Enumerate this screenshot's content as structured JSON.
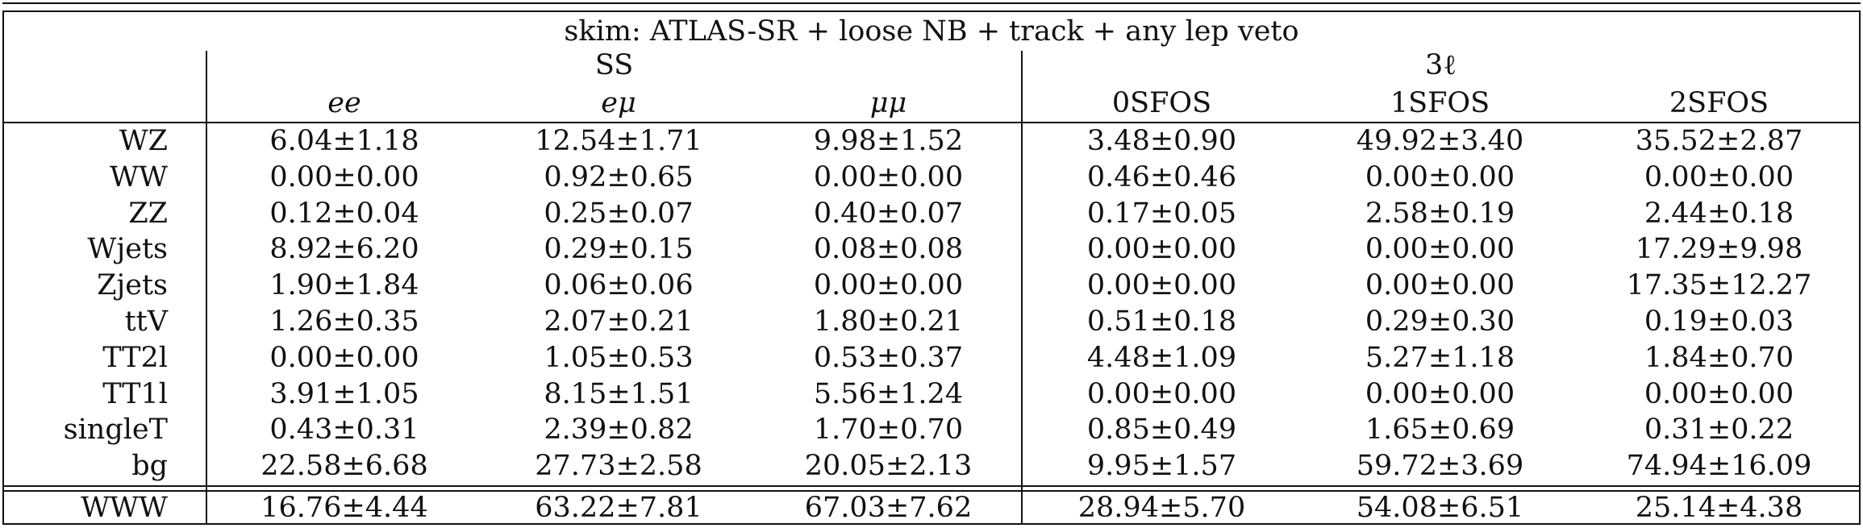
{
  "table": {
    "skim_label": "skim: ATLAS-SR + loose NB + track + any lep veto",
    "groups": [
      "SS",
      "3ℓ"
    ],
    "columns": [
      "ee",
      "eμ",
      "μμ",
      "0SFOS",
      "1SFOS",
      "2SFOS"
    ],
    "rows": [
      {
        "label": "WZ",
        "values": [
          "6.04±1.18",
          "12.54±1.71",
          "9.98±1.52",
          "3.48±0.90",
          "49.92±3.40",
          "35.52±2.87"
        ]
      },
      {
        "label": "WW",
        "values": [
          "0.00±0.00",
          "0.92±0.65",
          "0.00±0.00",
          "0.46±0.46",
          "0.00±0.00",
          "0.00±0.00"
        ]
      },
      {
        "label": "ZZ",
        "values": [
          "0.12±0.04",
          "0.25±0.07",
          "0.40±0.07",
          "0.17±0.05",
          "2.58±0.19",
          "2.44±0.18"
        ]
      },
      {
        "label": "Wjets",
        "values": [
          "8.92±6.20",
          "0.29±0.15",
          "0.08±0.08",
          "0.00±0.00",
          "0.00±0.00",
          "17.29±9.98"
        ]
      },
      {
        "label": "Zjets",
        "values": [
          "1.90±1.84",
          "0.06±0.06",
          "0.00±0.00",
          "0.00±0.00",
          "0.00±0.00",
          "17.35±12.27"
        ]
      },
      {
        "label": "ttV",
        "values": [
          "1.26±0.35",
          "2.07±0.21",
          "1.80±0.21",
          "0.51±0.18",
          "0.29±0.30",
          "0.19±0.03"
        ]
      },
      {
        "label": "TT2l",
        "values": [
          "0.00±0.00",
          "1.05±0.53",
          "0.53±0.37",
          "4.48±1.09",
          "5.27±1.18",
          "1.84±0.70"
        ]
      },
      {
        "label": "TT1l",
        "values": [
          "3.91±1.05",
          "8.15±1.51",
          "5.56±1.24",
          "0.00±0.00",
          "0.00±0.00",
          "0.00±0.00"
        ]
      },
      {
        "label": "singleT",
        "values": [
          "0.43±0.31",
          "2.39±0.82",
          "1.70±0.70",
          "0.85±0.49",
          "1.65±0.69",
          "0.31±0.22"
        ]
      },
      {
        "label": "bg",
        "values": [
          "22.58±6.68",
          "27.73±2.58",
          "20.05±2.13",
          "9.95±1.57",
          "59.72±3.69",
          "74.94±16.09"
        ]
      }
    ],
    "signal_row": {
      "label": "WWW",
      "values": [
        "16.76±4.44",
        "63.22±7.81",
        "67.03±7.62",
        "28.94±5.70",
        "54.08±6.51",
        "25.14±4.38"
      ]
    }
  }
}
